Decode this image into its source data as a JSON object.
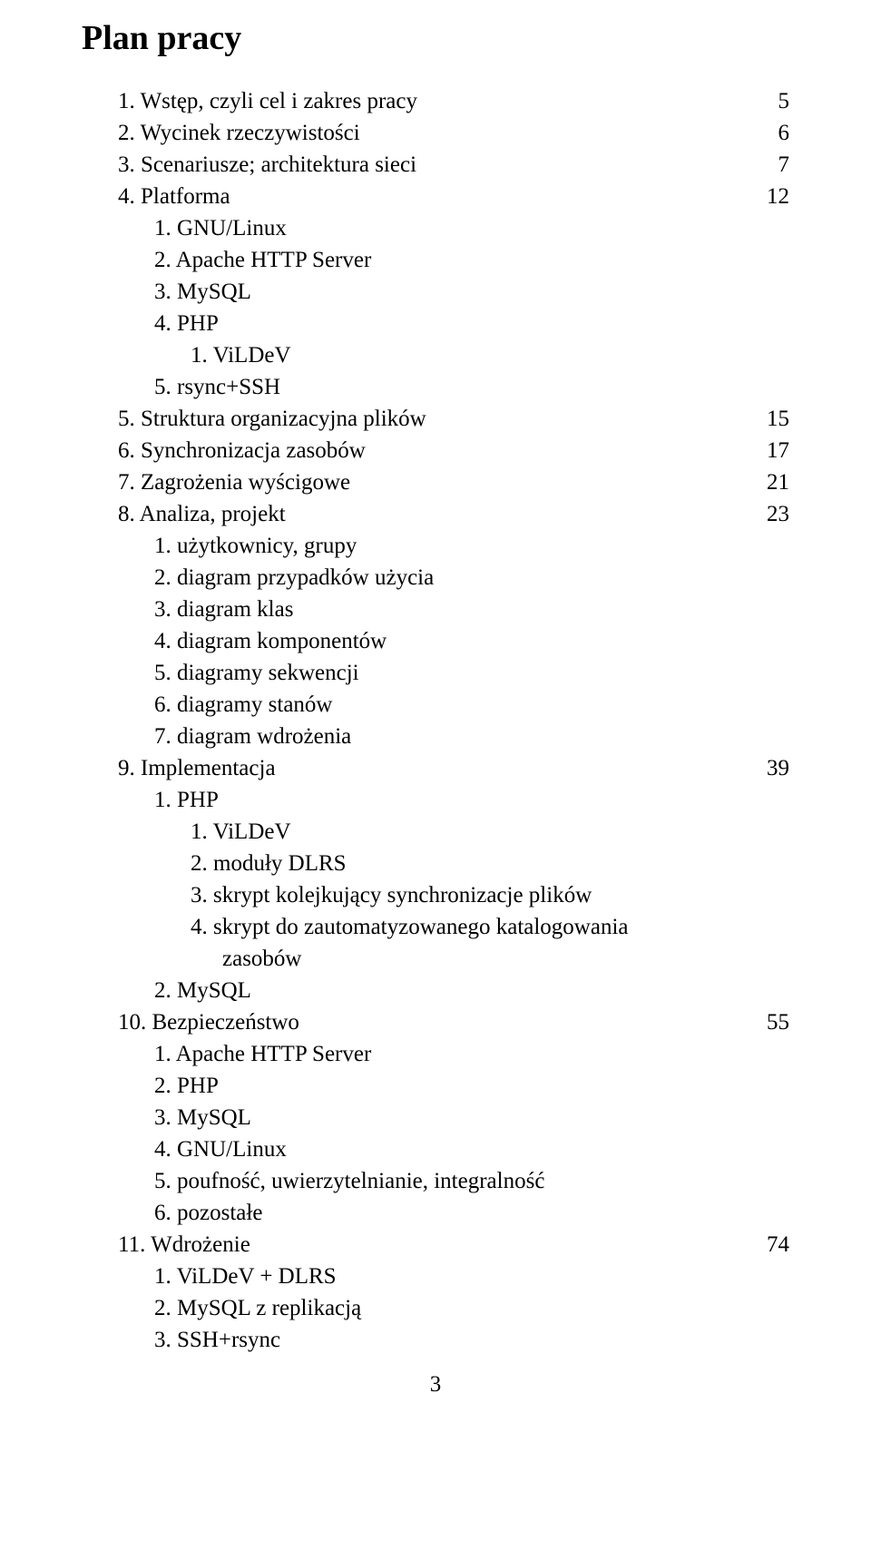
{
  "title": "Plan pracy",
  "items": {
    "i1": {
      "num": "1.",
      "text": "Wstęp, czyli cel i zakres pracy",
      "page": "5"
    },
    "i2": {
      "num": "2.",
      "text": "Wycinek rzeczywistości",
      "page": "6"
    },
    "i3": {
      "num": "3.",
      "text": "Scenariusze; architektura sieci",
      "page": "7"
    },
    "i4": {
      "num": "4.",
      "text": "Platforma",
      "page": "12"
    },
    "i4_1": {
      "num": "1.",
      "text": "GNU/Linux"
    },
    "i4_2": {
      "num": "2.",
      "text": "Apache HTTP Server"
    },
    "i4_3": {
      "num": "3.",
      "text": "MySQL"
    },
    "i4_4": {
      "num": "4.",
      "text": "PHP"
    },
    "i4_4_1": {
      "num": "1.",
      "text": "ViLDeV"
    },
    "i4_5": {
      "num": "5.",
      "text": "rsync+SSH"
    },
    "i5": {
      "num": "5.",
      "text": "Struktura organizacyjna plików",
      "page": "15"
    },
    "i6": {
      "num": "6.",
      "text": "Synchronizacja zasobów",
      "page": "17"
    },
    "i7": {
      "num": "7.",
      "text": "Zagrożenia wyścigowe",
      "page": "21"
    },
    "i8": {
      "num": "8.",
      "text": "Analiza, projekt",
      "page": "23"
    },
    "i8_1": {
      "num": "1.",
      "text": "użytkownicy, grupy"
    },
    "i8_2": {
      "num": "2.",
      "text": "diagram przypadków użycia"
    },
    "i8_3": {
      "num": "3.",
      "text": "diagram klas"
    },
    "i8_4": {
      "num": "4.",
      "text": "diagram komponentów"
    },
    "i8_5": {
      "num": "5.",
      "text": "diagramy sekwencji"
    },
    "i8_6": {
      "num": "6.",
      "text": "diagramy stanów"
    },
    "i8_7": {
      "num": "7.",
      "text": "diagram wdrożenia"
    },
    "i9": {
      "num": "9.",
      "text": "Implementacja",
      "page": "39"
    },
    "i9_1": {
      "num": "1.",
      "text": "PHP"
    },
    "i9_1_1": {
      "num": "1.",
      "text": "ViLDeV"
    },
    "i9_1_2": {
      "num": "2.",
      "text": "moduły DLRS"
    },
    "i9_1_3": {
      "num": "3.",
      "text": "skrypt kolejkujący synchronizacje plików"
    },
    "i9_1_4": {
      "num": "4.",
      "text": "skrypt do zautomatyzowanego katalogowania"
    },
    "i9_1_4b": {
      "text": "zasobów"
    },
    "i9_2": {
      "num": "2.",
      "text": "MySQL"
    },
    "i10": {
      "num": "10.",
      "text": "Bezpieczeństwo",
      "page": "55"
    },
    "i10_1": {
      "num": "1.",
      "text": "Apache HTTP Server"
    },
    "i10_2": {
      "num": "2.",
      "text": "PHP"
    },
    "i10_3": {
      "num": "3.",
      "text": "MySQL"
    },
    "i10_4": {
      "num": "4.",
      "text": "GNU/Linux"
    },
    "i10_5": {
      "num": "5.",
      "text": "poufność, uwierzytelnianie, integralność"
    },
    "i10_6": {
      "num": "6.",
      "text": "pozostałe"
    },
    "i11": {
      "num": "11.",
      "text": "Wdrożenie",
      "page": "74"
    },
    "i11_1": {
      "num": "1.",
      "text": "ViLDeV + DLRS"
    },
    "i11_2": {
      "num": "2.",
      "text": "MySQL z replikacją"
    },
    "i11_3": {
      "num": "3.",
      "text": "SSH+rsync"
    }
  },
  "footer_page": "3"
}
